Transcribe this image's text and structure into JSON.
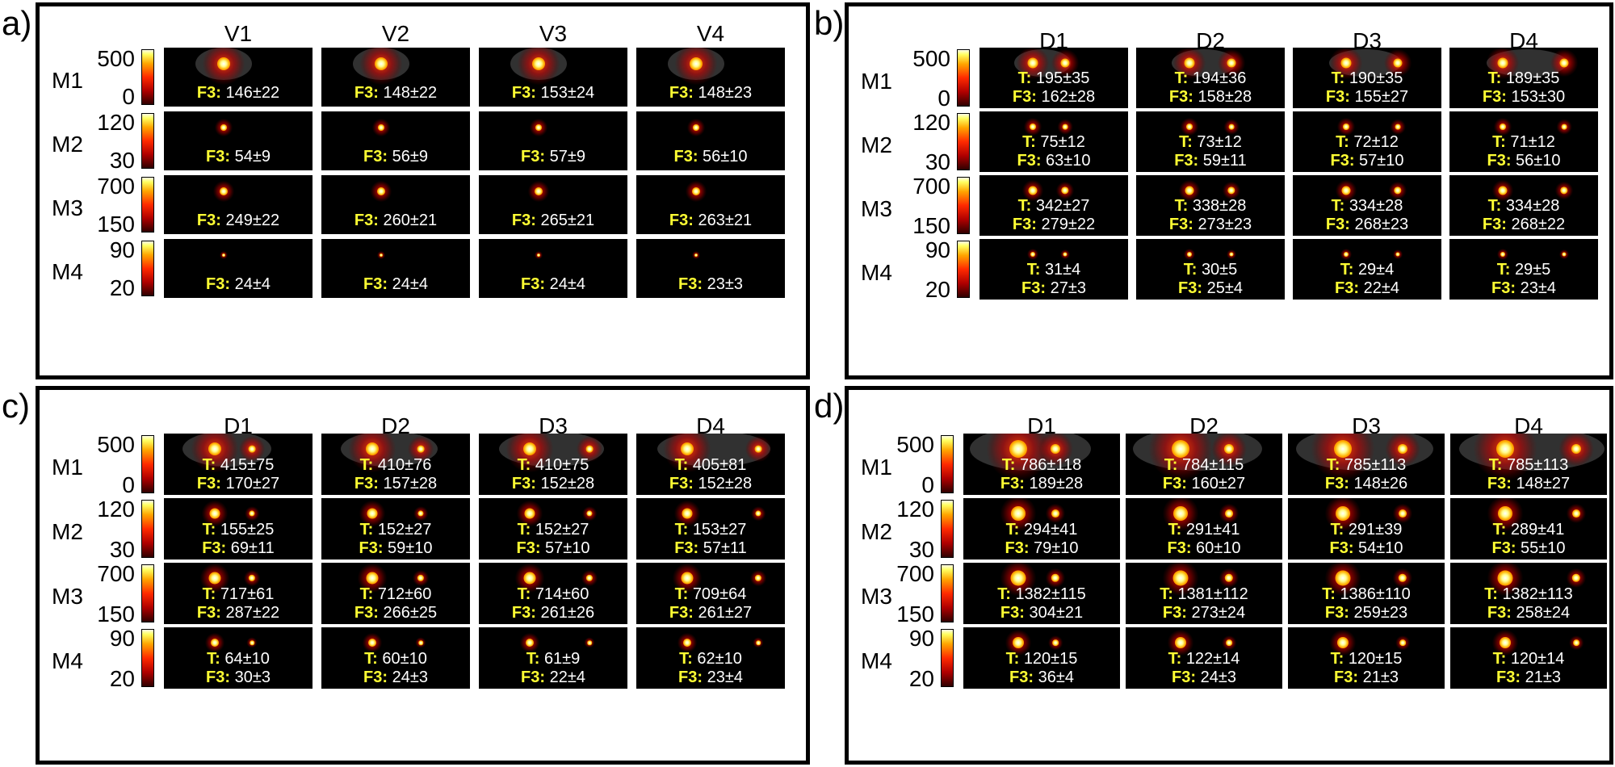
{
  "panels": [
    {
      "label": "a)",
      "columns": [
        "V1",
        "V2",
        "V3",
        "V4"
      ],
      "rows": [
        {
          "name": "M1",
          "scale": [
            "500",
            "0"
          ],
          "cells": [
            {
              "f3": "146±22"
            },
            {
              "f3": "148±22"
            },
            {
              "f3": "153±24"
            },
            {
              "f3": "148±23"
            }
          ]
        },
        {
          "name": "M2",
          "scale": [
            "120",
            "30"
          ],
          "cells": [
            {
              "f3": "54±9"
            },
            {
              "f3": "56±9"
            },
            {
              "f3": "57±9"
            },
            {
              "f3": "56±10"
            }
          ]
        },
        {
          "name": "M3",
          "scale": [
            "700",
            "150"
          ],
          "cells": [
            {
              "f3": "249±22"
            },
            {
              "f3": "260±21"
            },
            {
              "f3": "265±21"
            },
            {
              "f3": "263±21"
            }
          ]
        },
        {
          "name": "M4",
          "scale": [
            "90",
            "20"
          ],
          "cells": [
            {
              "f3": "24±4"
            },
            {
              "f3": "24±4"
            },
            {
              "f3": "24±4"
            },
            {
              "f3": "23±3"
            }
          ]
        }
      ]
    },
    {
      "label": "b)",
      "columns": [
        "D1",
        "D2",
        "D3",
        "D4"
      ],
      "rows": [
        {
          "name": "M1",
          "scale": [
            "500",
            "0"
          ],
          "cells": [
            {
              "t": "195±35",
              "f3": "162±28"
            },
            {
              "t": "194±36",
              "f3": "158±28"
            },
            {
              "t": "190±35",
              "f3": "155±27"
            },
            {
              "t": "189±35",
              "f3": "153±30"
            }
          ]
        },
        {
          "name": "M2",
          "scale": [
            "120",
            "30"
          ],
          "cells": [
            {
              "t": "75±12",
              "f3": "63±10"
            },
            {
              "t": "73±12",
              "f3": "59±11"
            },
            {
              "t": "72±12",
              "f3": "57±10"
            },
            {
              "t": "71±12",
              "f3": "56±10"
            }
          ]
        },
        {
          "name": "M3",
          "scale": [
            "700",
            "150"
          ],
          "cells": [
            {
              "t": "342±27",
              "f3": "279±22"
            },
            {
              "t": "338±28",
              "f3": "273±23"
            },
            {
              "t": "334±28",
              "f3": "268±23"
            },
            {
              "t": "334±28",
              "f3": "268±22"
            }
          ]
        },
        {
          "name": "M4",
          "scale": [
            "90",
            "20"
          ],
          "cells": [
            {
              "t": "31±4",
              "f3": "27±3"
            },
            {
              "t": "30±5",
              "f3": "25±4"
            },
            {
              "t": "29±4",
              "f3": "22±4"
            },
            {
              "t": "29±5",
              "f3": "23±4"
            }
          ]
        }
      ]
    },
    {
      "label": "c)",
      "columns": [
        "D1",
        "D2",
        "D3",
        "D4"
      ],
      "rows": [
        {
          "name": "M1",
          "scale": [
            "500",
            "0"
          ],
          "cells": [
            {
              "t": "415±75",
              "f3": "170±27"
            },
            {
              "t": "410±76",
              "f3": "157±28"
            },
            {
              "t": "410±75",
              "f3": "152±28"
            },
            {
              "t": "405±81",
              "f3": "152±28"
            }
          ]
        },
        {
          "name": "M2",
          "scale": [
            "120",
            "30"
          ],
          "cells": [
            {
              "t": "155±25",
              "f3": "69±11"
            },
            {
              "t": "152±27",
              "f3": "59±10"
            },
            {
              "t": "152±27",
              "f3": "57±10"
            },
            {
              "t": "153±27",
              "f3": "57±11"
            }
          ]
        },
        {
          "name": "M3",
          "scale": [
            "700",
            "150"
          ],
          "cells": [
            {
              "t": "717±61",
              "f3": "287±22"
            },
            {
              "t": "712±60",
              "f3": "266±25"
            },
            {
              "t": "714±60",
              "f3": "261±26"
            },
            {
              "t": "709±64",
              "f3": "261±27"
            }
          ]
        },
        {
          "name": "M4",
          "scale": [
            "90",
            "20"
          ],
          "cells": [
            {
              "t": "64±10",
              "f3": "30±3"
            },
            {
              "t": "60±10",
              "f3": "24±3"
            },
            {
              "t": "61±9",
              "f3": "22±4"
            },
            {
              "t": "62±10",
              "f3": "23±4"
            }
          ]
        }
      ]
    },
    {
      "label": "d)",
      "columns": [
        "D1",
        "D2",
        "D3",
        "D4"
      ],
      "rows": [
        {
          "name": "M1",
          "scale": [
            "500",
            "0"
          ],
          "cells": [
            {
              "t": "786±118",
              "f3": "189±28"
            },
            {
              "t": "784±115",
              "f3": "160±27"
            },
            {
              "t": "785±113",
              "f3": "148±26"
            },
            {
              "t": "785±113",
              "f3": "148±27"
            }
          ]
        },
        {
          "name": "M2",
          "scale": [
            "120",
            "30"
          ],
          "cells": [
            {
              "t": "294±41",
              "f3": "79±10"
            },
            {
              "t": "291±41",
              "f3": "60±10"
            },
            {
              "t": "291±39",
              "f3": "54±10"
            },
            {
              "t": "289±41",
              "f3": "55±10"
            }
          ]
        },
        {
          "name": "M3",
          "scale": [
            "700",
            "150"
          ],
          "cells": [
            {
              "t": "1382±115",
              "f3": "304±21"
            },
            {
              "t": "1381±112",
              "f3": "273±24"
            },
            {
              "t": "1386±110",
              "f3": "259±23"
            },
            {
              "t": "1382±113",
              "f3": "258±24"
            }
          ]
        },
        {
          "name": "M4",
          "scale": [
            "90",
            "20"
          ],
          "cells": [
            {
              "t": "120±15",
              "f3": "36±4"
            },
            {
              "t": "122±14",
              "f3": "24±3"
            },
            {
              "t": "120±15",
              "f3": "21±3"
            },
            {
              "t": "120±14",
              "f3": "21±3"
            }
          ]
        }
      ]
    }
  ],
  "keys": {
    "t": "T:",
    "f3": "F3:"
  }
}
